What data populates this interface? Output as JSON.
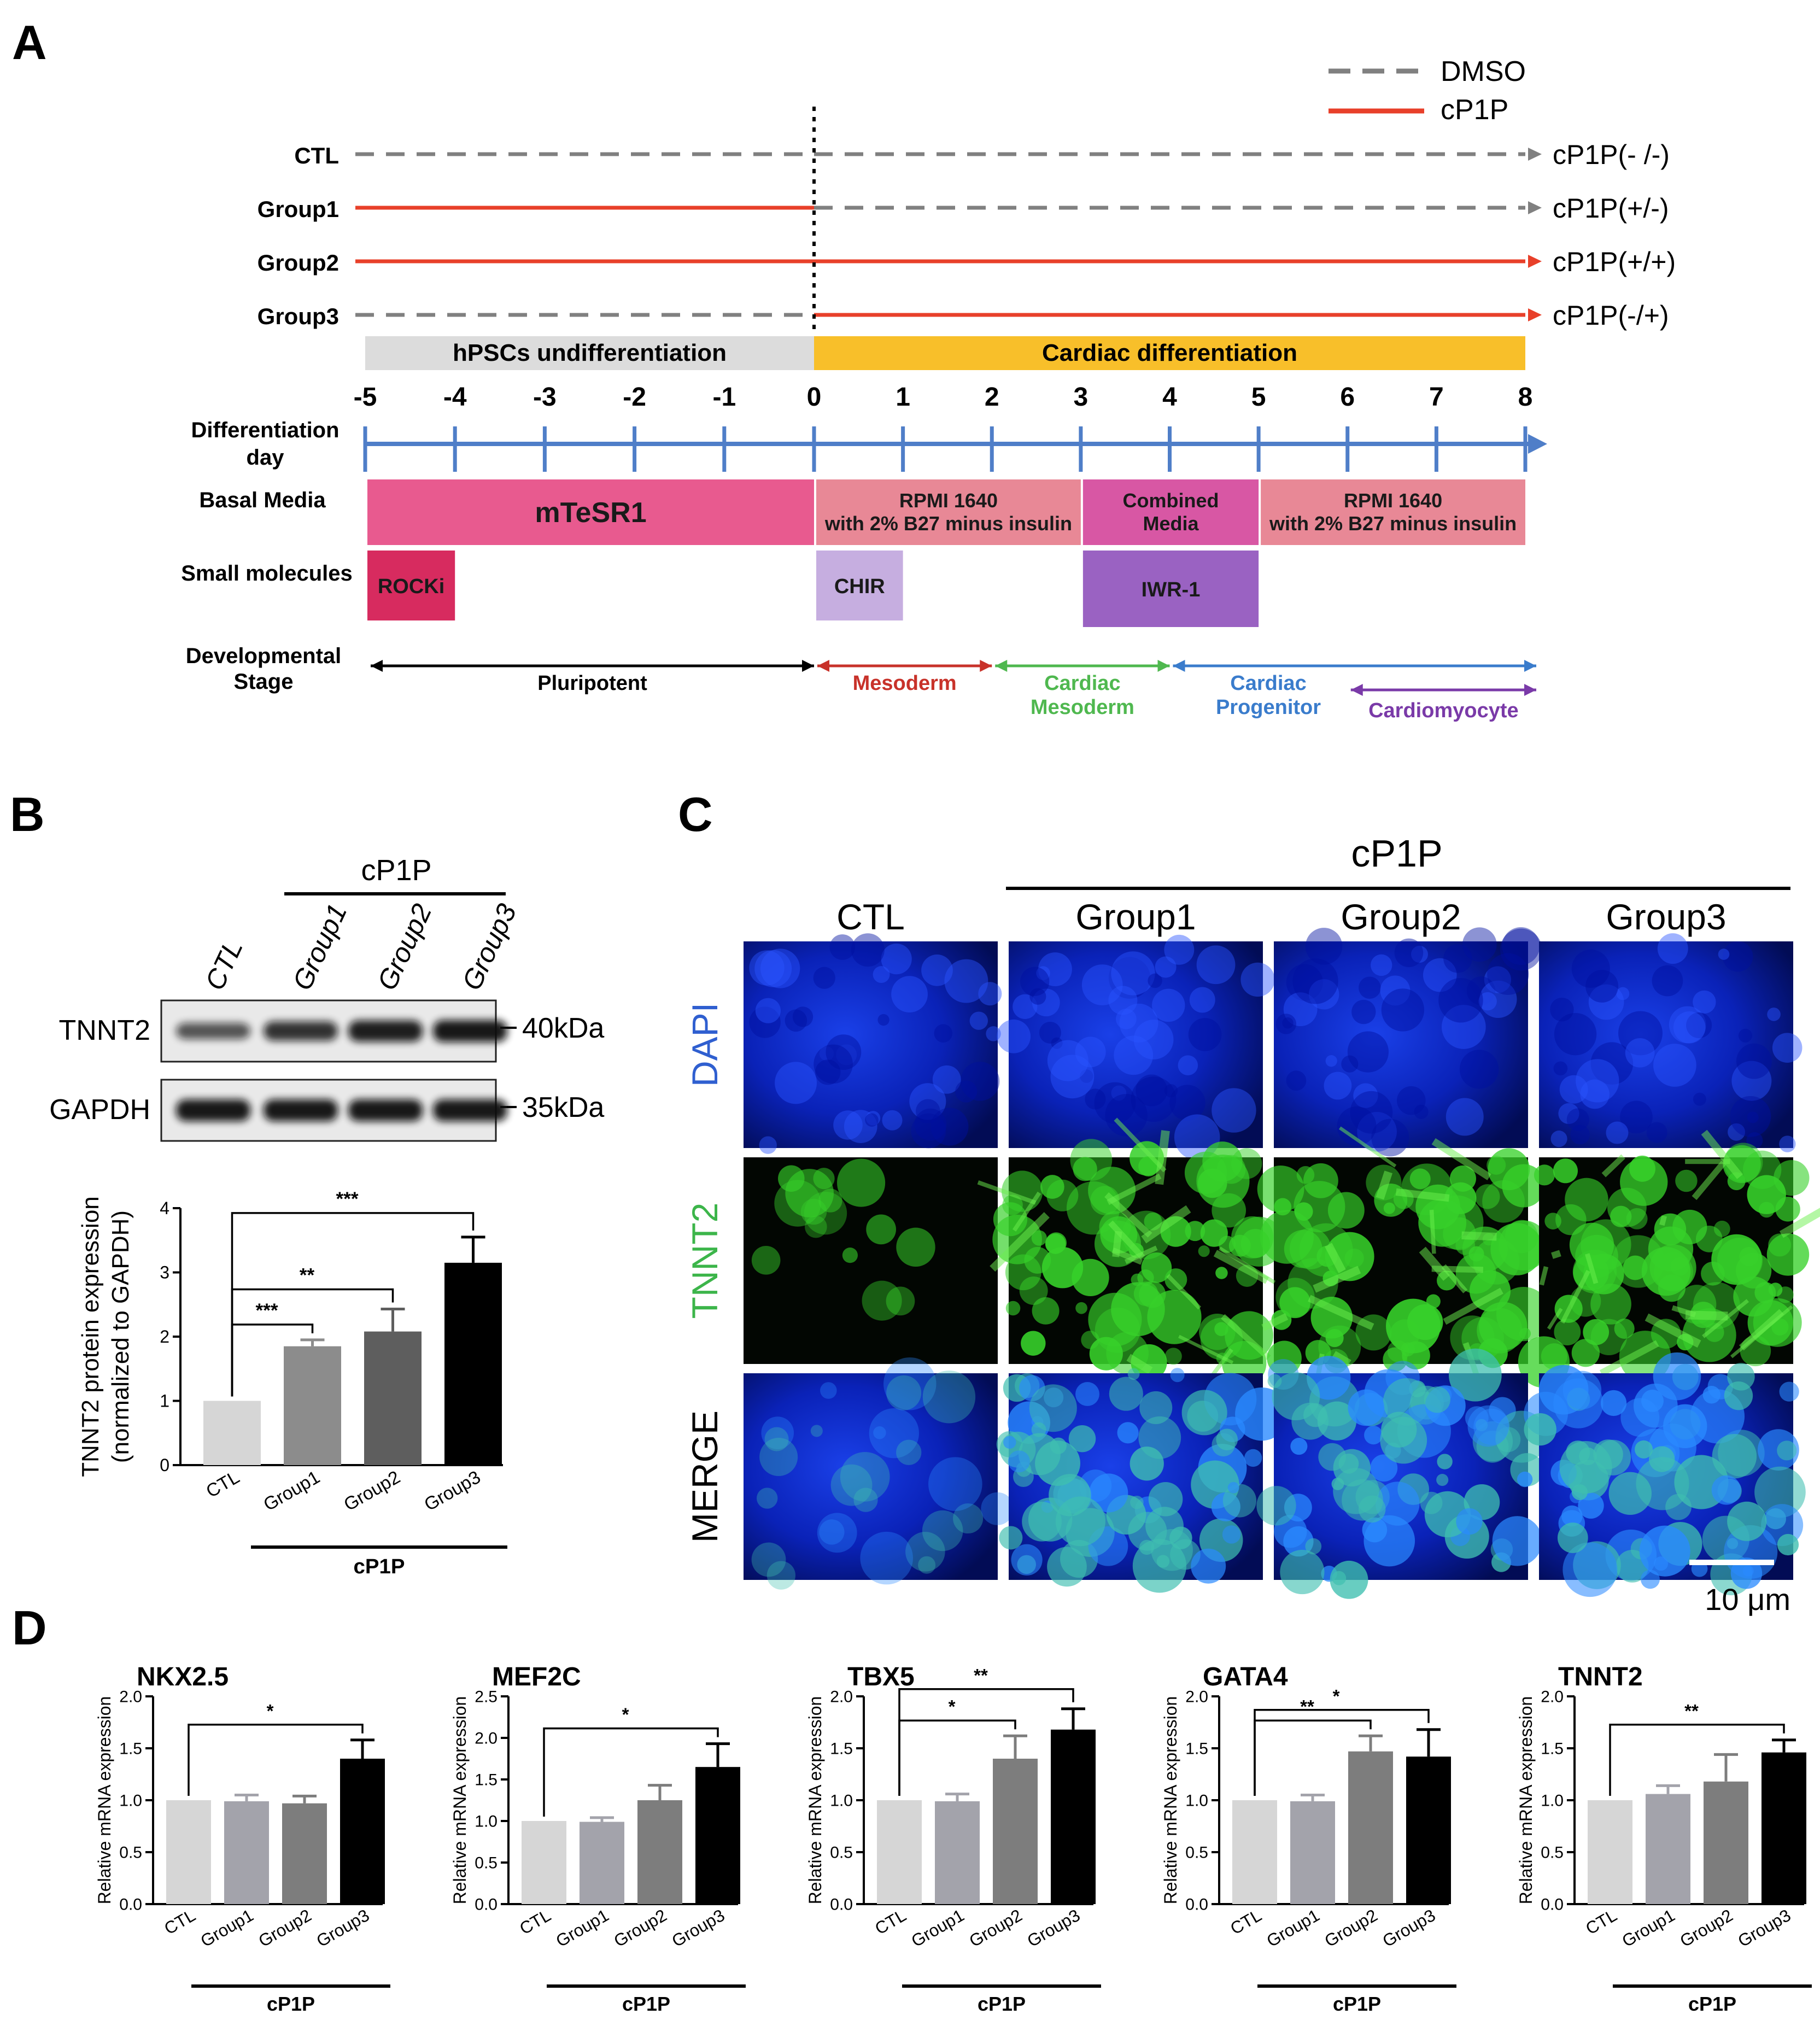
{
  "figure": {
    "panels": [
      "A",
      "B",
      "C",
      "D"
    ]
  },
  "panelA": {
    "legend": [
      {
        "label": "DMSO",
        "style": "dashed",
        "color": "#808080"
      },
      {
        "label": "cP1P",
        "style": "solid",
        "color": "#e8402a"
      }
    ],
    "groups": [
      {
        "name": "CTL",
        "end_label": "cP1P(- /-)",
        "before": "dashed",
        "after": "dashed"
      },
      {
        "name": "Group1",
        "end_label": "cP1P(+/-)",
        "before": "solid",
        "after": "dashed"
      },
      {
        "name": "Group2",
        "end_label": "cP1P(+/+)",
        "before": "solid",
        "after": "solid"
      },
      {
        "name": "Group3",
        "end_label": "cP1P(-/+)",
        "before": "dashed",
        "after": "solid"
      }
    ],
    "phases": [
      {
        "label": "hPSCs undifferentiation",
        "start": -5,
        "end": 0,
        "color": "#dcdcdc"
      },
      {
        "label": "Cardiac differentiation",
        "start": 0,
        "end": 8,
        "color": "#f8bf2a"
      }
    ],
    "days": [
      "-5",
      "-4",
      "-3",
      "-2",
      "-1",
      "0",
      "1",
      "2",
      "3",
      "4",
      "5",
      "6",
      "7",
      "8"
    ],
    "row_labels": {
      "diff_day_1": "Differentiation",
      "diff_day_2": "day",
      "basal": "Basal Media",
      "small": "Small molecules",
      "dev_1": "Developmental",
      "dev_2": "Stage"
    },
    "media": [
      {
        "label1": "mTeSR1",
        "label2": "",
        "start": -5,
        "end": 0,
        "color": "#e85a8f"
      },
      {
        "label1": "RPMI 1640",
        "label2": "with 2% B27 minus insulin",
        "start": 0,
        "end": 3,
        "color": "#e88896"
      },
      {
        "label1": "Combined",
        "label2": "Media",
        "start": 3,
        "end": 5,
        "color": "#d857a4"
      },
      {
        "label1": "RPMI 1640",
        "label2": "with 2% B27 minus insulin",
        "start": 5,
        "end": 8,
        "color": "#e88896"
      }
    ],
    "molecules": [
      {
        "label": "ROCKi",
        "start": -5,
        "end": -4,
        "color": "#d72b5f",
        "text_color": "#1a1a1a"
      },
      {
        "label": "CHIR",
        "start": 0,
        "end": 1,
        "color": "#c6aee0",
        "text_color": "#1a1a1a"
      },
      {
        "label": "IWR-1",
        "start": 3,
        "end": 5,
        "color": "#9a62c2",
        "text_color": "#1a1a1a"
      }
    ],
    "stages": [
      {
        "label1": "Pluripotent",
        "label2": "",
        "start": -5,
        "end": 0,
        "color": "#000000"
      },
      {
        "label1": "Mesoderm",
        "label2": "",
        "start": 0,
        "end": 2,
        "color": "#c8322a"
      },
      {
        "label1": "Cardiac",
        "label2": "Mesoderm",
        "start": 2,
        "end": 4,
        "color": "#4fb84f"
      },
      {
        "label1": "Cardiac",
        "label2": "Progenitor",
        "start": 4,
        "end": 8,
        "color": "#3a7ccc"
      },
      {
        "label1": "Cardiomyocyte",
        "label2": "",
        "start": 6,
        "end": 8,
        "color": "#7a3aa8"
      }
    ]
  },
  "panelB": {
    "blot_header": "cP1P",
    "lanes": [
      "CTL",
      "Group1",
      "Group2",
      "Group3"
    ],
    "blots": [
      {
        "name": "TNNT2",
        "size": "40kDa",
        "intensity": [
          0.55,
          0.8,
          0.95,
          1.0
        ]
      },
      {
        "name": "GAPDH",
        "size": "35kDa",
        "intensity": [
          1.0,
          1.0,
          1.0,
          1.0
        ]
      }
    ],
    "group_label": "cP1P"
  },
  "panelC": {
    "header": "cP1P",
    "columns": [
      "CTL",
      "Group1",
      "Group2",
      "Group3"
    ],
    "rows": [
      {
        "label": "DAPI",
        "color": "#2f5fd0"
      },
      {
        "label": "TNNT2",
        "color": "#3cb54a"
      },
      {
        "label": "MERGE",
        "color": "#000000"
      }
    ],
    "scale_bar": "10 μm"
  },
  "chart_data": [
    {
      "type": "bar",
      "panel": "B",
      "categories": [
        "CTL",
        "Group1",
        "Group2",
        "Group3"
      ],
      "values": [
        1.0,
        1.85,
        2.08,
        3.15
      ],
      "errors": [
        0,
        0.1,
        0.35,
        0.4
      ],
      "colors": [
        "#d6d6d6",
        "#8c8c8c",
        "#5e5e5e",
        "#000000"
      ],
      "ylabel_1": "TNNT2 protein expression",
      "ylabel_2": "(normalized to GAPDH)",
      "ylim": [
        0,
        4
      ],
      "yticks": [
        "0",
        "1",
        "2",
        "3",
        "4"
      ],
      "group_label": "cP1P",
      "significance": [
        {
          "from": 0,
          "to": 1,
          "label": "***"
        },
        {
          "from": 0,
          "to": 2,
          "label": "**"
        },
        {
          "from": 0,
          "to": 3,
          "label": "***"
        }
      ]
    },
    {
      "type": "bar",
      "panel": "D",
      "title": "NKX2.5",
      "categories": [
        "CTL",
        "Group1",
        "Group2",
        "Group3"
      ],
      "values": [
        1.0,
        0.99,
        0.97,
        1.4
      ],
      "errors": [
        0,
        0.06,
        0.07,
        0.18
      ],
      "colors": [
        "#d6d6d6",
        "#a3a3ab",
        "#7d7d7d",
        "#000000"
      ],
      "ylabel": "Relative mRNA expression",
      "ylim": [
        0,
        2.0
      ],
      "yticks": [
        "0.0",
        "0.5",
        "1.0",
        "1.5",
        "2.0"
      ],
      "group_label": "cP1P",
      "significance": [
        {
          "from": 0,
          "to": 3,
          "label": "*"
        }
      ]
    },
    {
      "type": "bar",
      "panel": "D",
      "title": "MEF2C",
      "categories": [
        "CTL",
        "Group1",
        "Group2",
        "Group3"
      ],
      "values": [
        1.0,
        0.99,
        1.25,
        1.65
      ],
      "errors": [
        0,
        0.05,
        0.18,
        0.28
      ],
      "colors": [
        "#d6d6d6",
        "#a3a3ab",
        "#7d7d7d",
        "#000000"
      ],
      "ylabel": "Relative mRNA expression",
      "ylim": [
        0,
        2.5
      ],
      "yticks": [
        "0.0",
        "0.5",
        "1.0",
        "1.5",
        "2.0",
        "2.5"
      ],
      "group_label": "cP1P",
      "significance": [
        {
          "from": 0,
          "to": 3,
          "label": "*"
        }
      ]
    },
    {
      "type": "bar",
      "panel": "D",
      "title": "TBX5",
      "categories": [
        "CTL",
        "Group1",
        "Group2",
        "Group3"
      ],
      "values": [
        1.0,
        0.99,
        1.4,
        1.68
      ],
      "errors": [
        0,
        0.07,
        0.22,
        0.2
      ],
      "colors": [
        "#d6d6d6",
        "#a3a3ab",
        "#7d7d7d",
        "#000000"
      ],
      "ylabel": "Relative mRNA expression",
      "ylim": [
        0,
        2.0
      ],
      "yticks": [
        "0.0",
        "0.5",
        "1.0",
        "1.5",
        "2.0"
      ],
      "group_label": "cP1P",
      "significance": [
        {
          "from": 0,
          "to": 2,
          "label": "*"
        },
        {
          "from": 0,
          "to": 3,
          "label": "**"
        }
      ]
    },
    {
      "type": "bar",
      "panel": "D",
      "title": "GATA4",
      "categories": [
        "CTL",
        "Group1",
        "Group2",
        "Group3"
      ],
      "values": [
        1.0,
        0.99,
        1.47,
        1.42
      ],
      "errors": [
        0,
        0.06,
        0.15,
        0.26
      ],
      "colors": [
        "#d6d6d6",
        "#a3a3ab",
        "#7d7d7d",
        "#000000"
      ],
      "ylabel": "Relative mRNA expression",
      "ylim": [
        0,
        2.0
      ],
      "yticks": [
        "0.0",
        "0.5",
        "1.0",
        "1.5",
        "2.0"
      ],
      "group_label": "cP1P",
      "significance": [
        {
          "from": 0,
          "to": 2,
          "label": "**"
        },
        {
          "from": 0,
          "to": 3,
          "label": "*"
        }
      ]
    },
    {
      "type": "bar",
      "panel": "D",
      "title": "TNNT2",
      "categories": [
        "CTL",
        "Group1",
        "Group2",
        "Group3"
      ],
      "values": [
        1.0,
        1.06,
        1.18,
        1.46
      ],
      "errors": [
        0,
        0.08,
        0.26,
        0.12
      ],
      "colors": [
        "#d6d6d6",
        "#a3a3ab",
        "#7d7d7d",
        "#000000"
      ],
      "ylabel": "Relative mRNA expression",
      "ylim": [
        0,
        2.0
      ],
      "yticks": [
        "0.0",
        "0.5",
        "1.0",
        "1.5",
        "2.0"
      ],
      "group_label": "cP1P",
      "significance": [
        {
          "from": 0,
          "to": 3,
          "label": "**"
        }
      ]
    }
  ]
}
